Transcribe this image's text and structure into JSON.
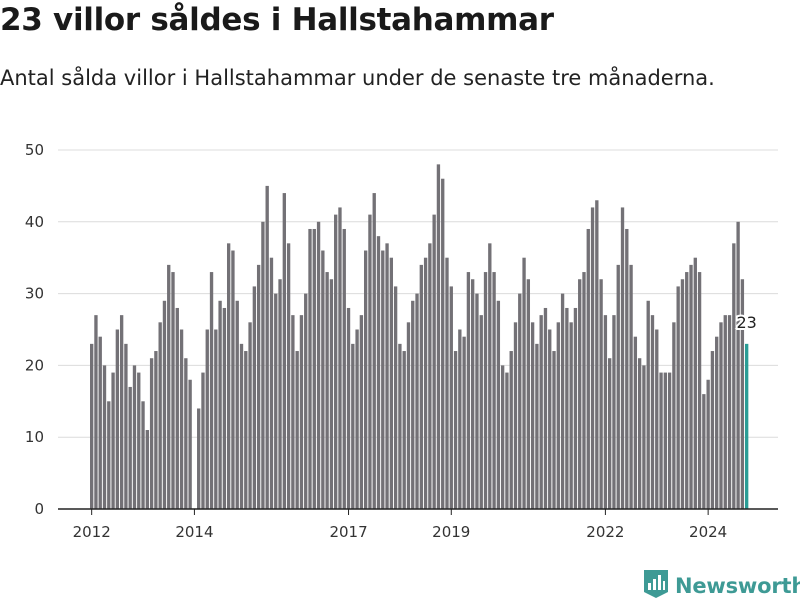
{
  "title": "23 villor såldes i Hallstahammar",
  "subtitle": "Antal sålda villor i Hallstahammar under de senaste tre månaderna.",
  "brand": {
    "name": "Newsworthy",
    "color": "#3e9a95",
    "icon": "newsworthy-logo-icon"
  },
  "colors": {
    "bar": "#737176",
    "highlight": "#2a9d96"
  },
  "chart_data": {
    "type": "bar",
    "title": "",
    "xlabel": "",
    "ylabel": "",
    "ylim": [
      0,
      50
    ],
    "yticks": [
      0,
      10,
      20,
      30,
      40,
      50
    ],
    "x_start": "2012-01",
    "x_end": "2024-09",
    "x_ticks": [
      {
        "label": "2012",
        "date": "2012-01"
      },
      {
        "label": "2014",
        "date": "2014-01"
      },
      {
        "label": "2017",
        "date": "2017-01"
      },
      {
        "label": "2019",
        "date": "2019-01"
      },
      {
        "label": "2022",
        "date": "2022-01"
      },
      {
        "label": "2024",
        "date": "2024-01"
      }
    ],
    "values": [
      23,
      27,
      24,
      20,
      15,
      19,
      25,
      27,
      23,
      17,
      20,
      19,
      15,
      11,
      21,
      22,
      26,
      29,
      34,
      33,
      28,
      25,
      21,
      18,
      0,
      14,
      19,
      25,
      33,
      25,
      29,
      28,
      37,
      36,
      29,
      23,
      22,
      26,
      31,
      34,
      40,
      45,
      35,
      30,
      32,
      44,
      37,
      27,
      22,
      27,
      30,
      39,
      39,
      40,
      36,
      33,
      32,
      41,
      42,
      39,
      28,
      23,
      25,
      27,
      36,
      41,
      44,
      38,
      36,
      37,
      35,
      31,
      23,
      22,
      26,
      29,
      30,
      34,
      35,
      37,
      41,
      48,
      46,
      35,
      31,
      22,
      25,
      24,
      33,
      32,
      30,
      27,
      33,
      37,
      33,
      29,
      20,
      19,
      22,
      26,
      30,
      35,
      32,
      26,
      23,
      27,
      28,
      25,
      22,
      26,
      30,
      28,
      26,
      28,
      32,
      33,
      39,
      42,
      43,
      32,
      27,
      21,
      27,
      34,
      42,
      39,
      34,
      24,
      21,
      20,
      29,
      27,
      25,
      19,
      19,
      19,
      26,
      31,
      32,
      33,
      34,
      35,
      33,
      16,
      18,
      22,
      24,
      26,
      27,
      27,
      37,
      40,
      32,
      23
    ],
    "highlight_last": true,
    "annotation": "23"
  }
}
